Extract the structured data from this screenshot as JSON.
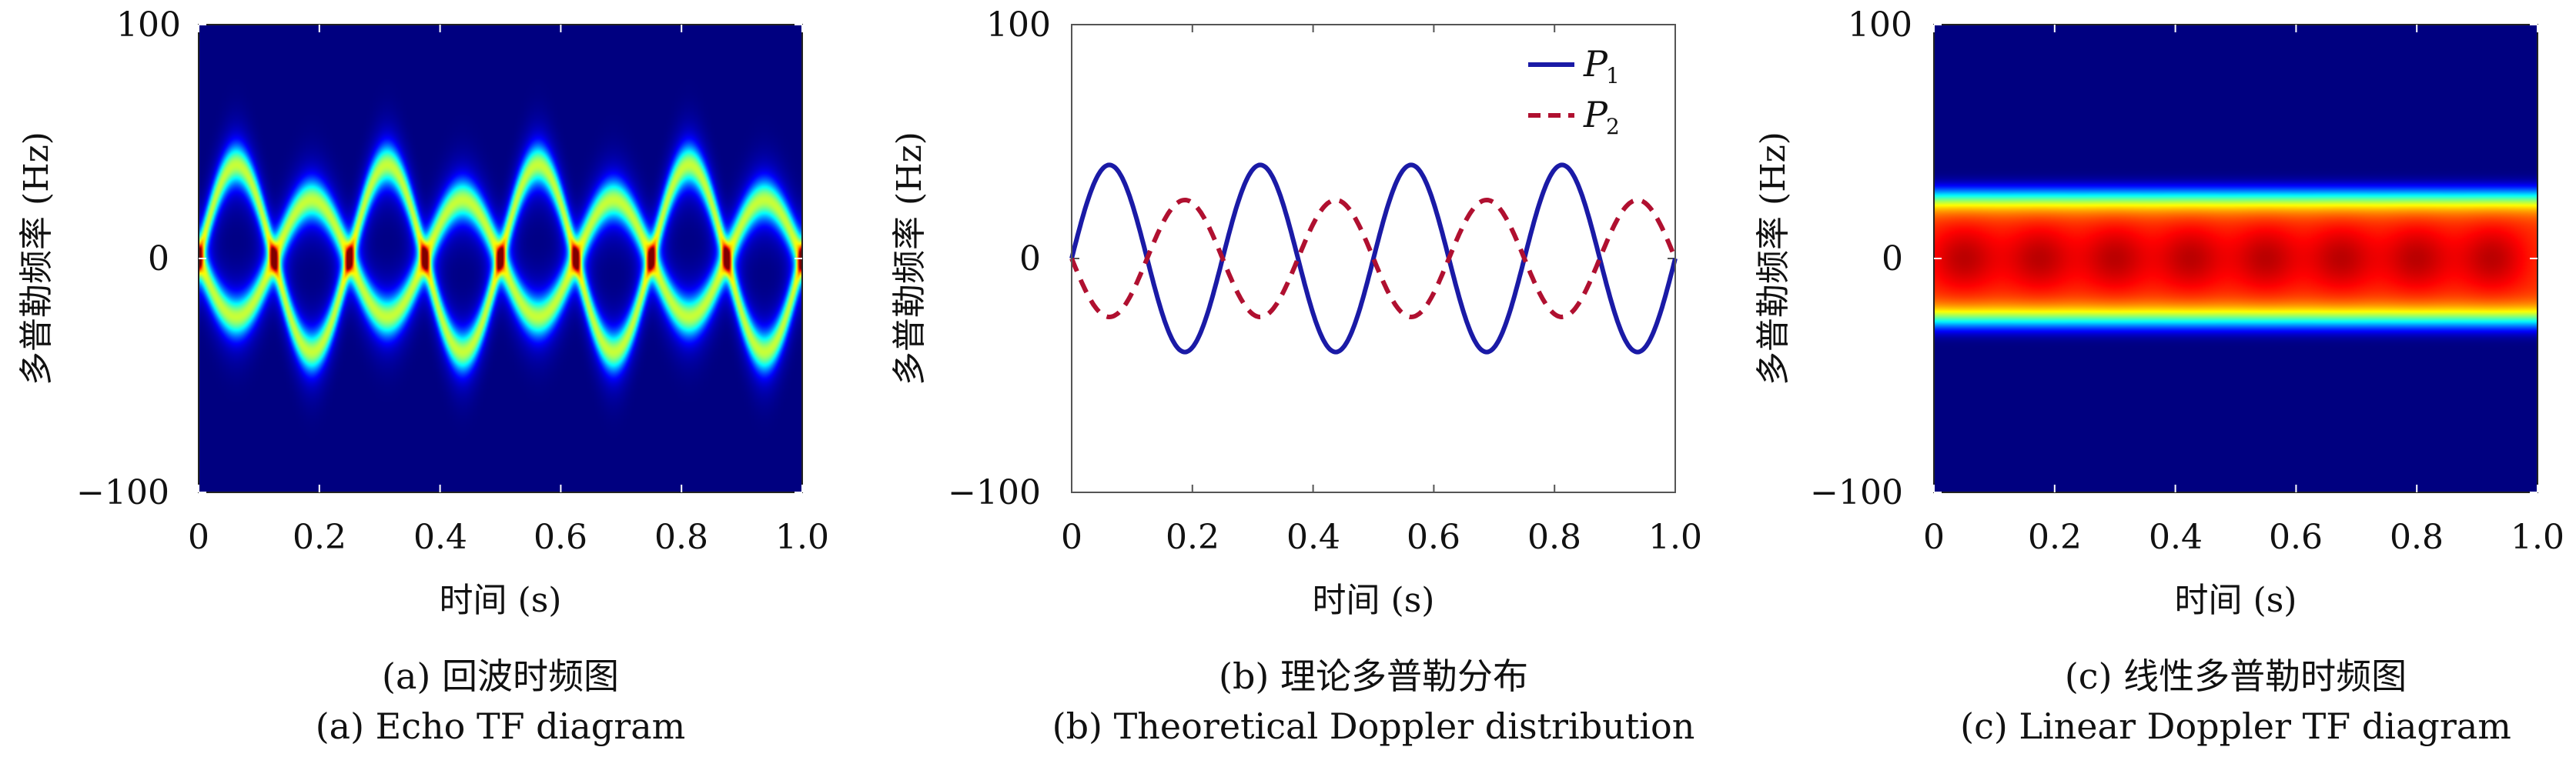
{
  "chart_data": [
    {
      "id": "a",
      "type": "heatmap",
      "caption_cn": "(a) 回波时频图",
      "caption_en": "(a) Echo TF diagram",
      "xlabel": "时间 (s)",
      "ylabel": "多普勒频率 (Hz)",
      "xlim": [
        0,
        1.0
      ],
      "ylim": [
        -100,
        100
      ],
      "x_ticks": [
        "0",
        "0.2",
        "0.4",
        "0.6",
        "0.8",
        "1.0"
      ],
      "y_ticks": [
        "−100",
        "0",
        "100"
      ],
      "colormap": "jet",
      "components": [
        {
          "amplitude": 40,
          "period": 0.25,
          "phase": 0
        },
        {
          "amplitude": 25,
          "period": 0.25,
          "phase": 3.14159
        }
      ]
    },
    {
      "id": "b",
      "type": "line",
      "caption_cn": "(b) 理论多普勒分布",
      "caption_en": "(b) Theoretical Doppler distribution",
      "xlabel": "时间 (s)",
      "ylabel": "多普勒频率 (Hz)",
      "xlim": [
        0,
        1.0
      ],
      "ylim": [
        -100,
        100
      ],
      "x_ticks": [
        "0",
        "0.2",
        "0.4",
        "0.6",
        "0.8",
        "1.0"
      ],
      "y_ticks": [
        "−100",
        "0",
        "100"
      ],
      "legend_position": "top-right",
      "series": [
        {
          "name": "P",
          "subscript": "1",
          "color": "#1a1aa6",
          "style": "solid",
          "amplitude": 40,
          "period": 0.25,
          "phase": 0
        },
        {
          "name": "P",
          "subscript": "2",
          "color": "#b01030",
          "style": "dashed",
          "amplitude": 25,
          "period": 0.25,
          "phase": 3.14159
        }
      ]
    },
    {
      "id": "c",
      "type": "heatmap",
      "caption_cn": "(c) 线性多普勒时频图",
      "caption_en": "(c) Linear Doppler TF diagram",
      "xlabel": "时间 (s)",
      "ylabel": "多普勒频率 (Hz)",
      "xlim": [
        0,
        1.0
      ],
      "ylim": [
        -100,
        100
      ],
      "x_ticks": [
        "0",
        "0.2",
        "0.4",
        "0.6",
        "0.8",
        "1.0"
      ],
      "y_ticks": [
        "−100",
        "0",
        "100"
      ],
      "colormap": "jet",
      "band_center": 0,
      "band_half_width": 28,
      "blob_times": [
        0.05,
        0.175,
        0.3,
        0.425,
        0.55,
        0.675,
        0.8,
        0.925
      ]
    }
  ]
}
